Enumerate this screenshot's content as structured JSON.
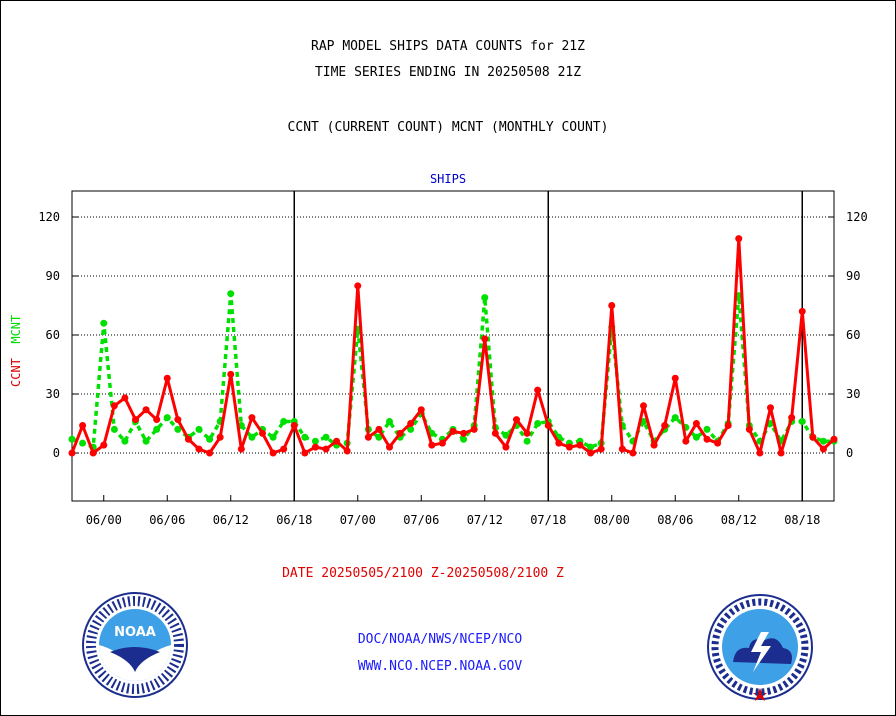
{
  "title_line1": "RAP MODEL SHIPS DATA COUNTS for 21Z",
  "title_line2": "TIME SERIES ENDING IN 20250508 21Z",
  "subtitle": "CCNT (CURRENT COUNT) MCNT (MONTHLY COUNT)",
  "date_range": "DATE 20250505/2100 Z-20250508/2100 Z",
  "credits": {
    "line1": "DOC/NOAA/NWS/NCEP/NCO",
    "line2": "WWW.NCO.NCEP.NOAA.GOV"
  },
  "logos": {
    "left_text": "NOAA",
    "right_text": "NATIONAL WEATHER SERVICE"
  },
  "chart_data": {
    "type": "line",
    "series_group": "SHIPS",
    "ylabel_ccnt": "CCNT",
    "ylabel_mcnt": "MCNT",
    "ylim": [
      -24,
      132
    ],
    "yticks": [
      0,
      30,
      60,
      90,
      120
    ],
    "grid": "horizontal dotted at ticks",
    "x_tick_labels": [
      "06/00",
      "06/06",
      "06/12",
      "06/18",
      "07/00",
      "07/06",
      "07/12",
      "07/18",
      "08/00",
      "08/06",
      "08/12",
      "08/18"
    ],
    "x_range_hours": [
      -3,
      69
    ],
    "day_boundaries_hours": [
      18,
      42,
      66
    ],
    "series": [
      {
        "name": "CCNT",
        "color": "#ff0000",
        "x": [
          -3,
          -2,
          -1,
          0,
          1,
          2,
          3,
          4,
          5,
          6,
          7,
          8,
          9,
          10,
          11,
          12,
          13,
          14,
          15,
          16,
          17,
          18,
          19,
          20,
          21,
          22,
          23,
          24,
          25,
          26,
          27,
          28,
          29,
          30,
          31,
          32,
          33,
          34,
          35,
          36,
          37,
          38,
          39,
          40,
          41,
          42,
          43,
          44,
          45,
          46,
          47,
          48,
          49,
          50,
          51,
          52,
          53,
          54,
          55,
          56,
          57,
          58,
          59,
          60,
          61,
          62,
          63,
          64,
          65,
          66,
          67,
          68,
          69
        ],
        "values": [
          0,
          14,
          0,
          4,
          24,
          28,
          17,
          22,
          17,
          38,
          17,
          7,
          2,
          0,
          8,
          40,
          2,
          18,
          10,
          0,
          2,
          14,
          0,
          3,
          2,
          6,
          1,
          85,
          8,
          12,
          3,
          10,
          15,
          22,
          4,
          5,
          11,
          10,
          12,
          58,
          10,
          3,
          17,
          10,
          32,
          14,
          5,
          3,
          4,
          0,
          2,
          75,
          2,
          0,
          24,
          4,
          14,
          38,
          6,
          15,
          7,
          5,
          14,
          109,
          12,
          0,
          23,
          0,
          18,
          72,
          8,
          2,
          7
        ]
      },
      {
        "name": "MCNT",
        "color": "#00e000",
        "x": [
          -3,
          -2,
          -1,
          0,
          1,
          2,
          3,
          4,
          5,
          6,
          7,
          8,
          9,
          10,
          11,
          12,
          13,
          14,
          15,
          16,
          17,
          18,
          19,
          20,
          21,
          22,
          23,
          24,
          25,
          26,
          27,
          28,
          29,
          30,
          31,
          32,
          33,
          34,
          35,
          36,
          37,
          38,
          39,
          40,
          41,
          42,
          43,
          44,
          45,
          46,
          47,
          48,
          49,
          50,
          51,
          52,
          53,
          54,
          55,
          56,
          57,
          58,
          59,
          60,
          61,
          62,
          63,
          64,
          65,
          66,
          67,
          68,
          69
        ],
        "values": [
          7,
          5,
          3,
          66,
          12,
          6,
          16,
          6,
          12,
          18,
          12,
          8,
          12,
          7,
          16,
          81,
          14,
          8,
          12,
          8,
          16,
          16,
          8,
          6,
          8,
          4,
          5,
          63,
          12,
          8,
          16,
          8,
          12,
          20,
          10,
          7,
          12,
          7,
          14,
          79,
          13,
          9,
          14,
          6,
          15,
          16,
          8,
          5,
          6,
          3,
          5,
          64,
          14,
          6,
          16,
          6,
          12,
          18,
          13,
          8,
          12,
          6,
          15,
          80,
          14,
          6,
          15,
          6,
          16,
          16,
          8,
          6,
          6
        ]
      }
    ]
  }
}
